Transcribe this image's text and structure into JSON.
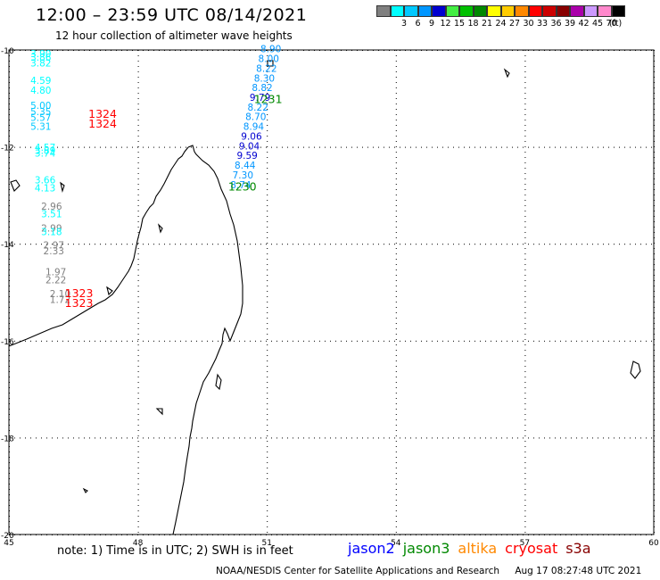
{
  "header": {
    "title": "12:00 – 23:59 UTC 08/14/2021",
    "subtitle": "12 hour collection of altimeter wave heights"
  },
  "legend": {
    "unit": "(ft)",
    "items": [
      {
        "color": "#808080",
        "label": ""
      },
      {
        "color": "#00ffff",
        "label": "3"
      },
      {
        "color": "#00c8ff",
        "label": "6"
      },
      {
        "color": "#0096ff",
        "label": "9"
      },
      {
        "color": "#0000d0",
        "label": "12"
      },
      {
        "color": "#44ee44",
        "label": "15"
      },
      {
        "color": "#00c000",
        "label": "18"
      },
      {
        "color": "#008800",
        "label": "21"
      },
      {
        "color": "#ffff00",
        "label": "24"
      },
      {
        "color": "#ffcc00",
        "label": "27"
      },
      {
        "color": "#ff8800",
        "label": "30"
      },
      {
        "color": "#ff0000",
        "label": "33"
      },
      {
        "color": "#cc0000",
        "label": "36"
      },
      {
        "color": "#880000",
        "label": "39"
      },
      {
        "color": "#aa00aa",
        "label": "42"
      },
      {
        "color": "#cc99ff",
        "label": "45"
      },
      {
        "color": "#ff88cc",
        "label": "70"
      },
      {
        "color": "#000000",
        "label": ""
      }
    ]
  },
  "axes": {
    "lat_labels": [
      "-10",
      "-12",
      "-14",
      "-16",
      "-18",
      "-20"
    ],
    "lon_labels": [
      "45",
      "48",
      "51",
      "54",
      "57",
      "60"
    ],
    "lat_range": [
      -20,
      -10
    ],
    "lon_range": [
      45,
      60
    ]
  },
  "track_jason3": {
    "mission": "jason3",
    "labels": [
      {
        "lon": 50.7,
        "lat": -11.1,
        "text": "1231"
      },
      {
        "lon": 50.1,
        "lat": -12.9,
        "text": "1230"
      }
    ],
    "points": [
      {
        "lon": 50.85,
        "lat": -10.05,
        "value": "8.90",
        "color": "#0096ff"
      },
      {
        "lon": 50.8,
        "lat": -10.25,
        "value": "8.00",
        "color": "#0096ff"
      },
      {
        "lon": 50.75,
        "lat": -10.45,
        "value": "8.22",
        "color": "#0096ff"
      },
      {
        "lon": 50.7,
        "lat": -10.65,
        "value": "8.30",
        "color": "#0096ff"
      },
      {
        "lon": 50.65,
        "lat": -10.85,
        "value": "8.82",
        "color": "#0096ff"
      },
      {
        "lon": 50.6,
        "lat": -11.05,
        "value": "9.79",
        "color": "#0000d0"
      },
      {
        "lon": 50.55,
        "lat": -11.25,
        "value": "8.22",
        "color": "#0096ff"
      },
      {
        "lon": 50.5,
        "lat": -11.45,
        "value": "8.70",
        "color": "#0096ff"
      },
      {
        "lon": 50.45,
        "lat": -11.65,
        "value": "8.94",
        "color": "#0096ff"
      },
      {
        "lon": 50.4,
        "lat": -11.85,
        "value": "9.06",
        "color": "#0000d0"
      },
      {
        "lon": 50.35,
        "lat": -12.05,
        "value": "9.04",
        "color": "#0000d0"
      },
      {
        "lon": 50.3,
        "lat": -12.25,
        "value": "9.59",
        "color": "#0000d0"
      },
      {
        "lon": 50.25,
        "lat": -12.45,
        "value": "8.44",
        "color": "#0096ff"
      },
      {
        "lon": 50.2,
        "lat": -12.65,
        "value": "7.30",
        "color": "#0096ff"
      },
      {
        "lon": 50.15,
        "lat": -12.85,
        "value": "8.74",
        "color": "#0096ff"
      }
    ]
  },
  "track_cryosat": {
    "mission": "cryosat",
    "labels": [
      {
        "lon": 46.85,
        "lat": -11.4,
        "text": "1324"
      },
      {
        "lon": 46.85,
        "lat": -11.6,
        "text": "1324"
      },
      {
        "lon": 46.3,
        "lat": -15.1,
        "text": "1323"
      },
      {
        "lon": 46.3,
        "lat": -15.3,
        "text": "1323"
      }
    ],
    "points": [
      {
        "lon": 45.5,
        "lat": -10.15,
        "value": "3.90",
        "color": "#00ffff"
      },
      {
        "lon": 45.5,
        "lat": -10.22,
        "value": "3.86",
        "color": "#00ffff"
      },
      {
        "lon": 45.5,
        "lat": -10.34,
        "value": "3.82",
        "color": "#00ffff"
      },
      {
        "lon": 45.5,
        "lat": -10.7,
        "value": "4.59",
        "color": "#00ffff"
      },
      {
        "lon": 45.5,
        "lat": -10.9,
        "value": "4.80",
        "color": "#00ffff"
      },
      {
        "lon": 45.5,
        "lat": -11.22,
        "value": "5.00",
        "color": "#00c8ff"
      },
      {
        "lon": 45.5,
        "lat": -11.34,
        "value": "5.35",
        "color": "#00c8ff"
      },
      {
        "lon": 45.5,
        "lat": -11.46,
        "value": "5.57",
        "color": "#00c8ff"
      },
      {
        "lon": 45.5,
        "lat": -11.65,
        "value": "5.31",
        "color": "#00c8ff"
      },
      {
        "lon": 45.6,
        "lat": -12.08,
        "value": "4.57",
        "color": "#00ffff"
      },
      {
        "lon": 45.6,
        "lat": -12.15,
        "value": "3.89",
        "color": "#00ffff"
      },
      {
        "lon": 45.6,
        "lat": -12.2,
        "value": "3.74",
        "color": "#00ffff"
      },
      {
        "lon": 45.6,
        "lat": -12.75,
        "value": "3.66",
        "color": "#00ffff"
      },
      {
        "lon": 45.6,
        "lat": -12.92,
        "value": "4.13",
        "color": "#00ffff"
      },
      {
        "lon": 45.75,
        "lat": -13.3,
        "value": "2.96",
        "color": "#808080"
      },
      {
        "lon": 45.75,
        "lat": -13.45,
        "value": "3.51",
        "color": "#00ffff"
      },
      {
        "lon": 45.75,
        "lat": -13.75,
        "value": "2.99",
        "color": "#808080"
      },
      {
        "lon": 45.75,
        "lat": -13.82,
        "value": "3.18",
        "color": "#00ffff"
      },
      {
        "lon": 45.8,
        "lat": -14.1,
        "value": "2.97",
        "color": "#808080"
      },
      {
        "lon": 45.8,
        "lat": -14.22,
        "value": "2.33",
        "color": "#808080"
      },
      {
        "lon": 45.85,
        "lat": -14.65,
        "value": "1.97",
        "color": "#808080"
      },
      {
        "lon": 45.85,
        "lat": -14.82,
        "value": "2.22",
        "color": "#808080"
      },
      {
        "lon": 45.95,
        "lat": -15.1,
        "value": "2.10",
        "color": "#808080"
      },
      {
        "lon": 45.95,
        "lat": -15.22,
        "value": "1.72",
        "color": "#808080"
      }
    ]
  },
  "footer": {
    "note": "note: 1) Time is in UTC; 2) SWH is in feet",
    "missions": [
      {
        "name": "jason2",
        "color": "#0000ff"
      },
      {
        "name": "jason3",
        "color": "#008800"
      },
      {
        "name": "altika",
        "color": "#ff8800"
      },
      {
        "name": "cryosat",
        "color": "#ff0000"
      },
      {
        "name": "s3a",
        "color": "#880000"
      }
    ],
    "credit": "NOAA/NESDIS Center for Satellite Applications and Research",
    "timestamp": "Aug 17 08:27:48 UTC 2021"
  },
  "colors": {
    "jason3_label": "#008800",
    "cryosat_label": "#ff0000"
  }
}
